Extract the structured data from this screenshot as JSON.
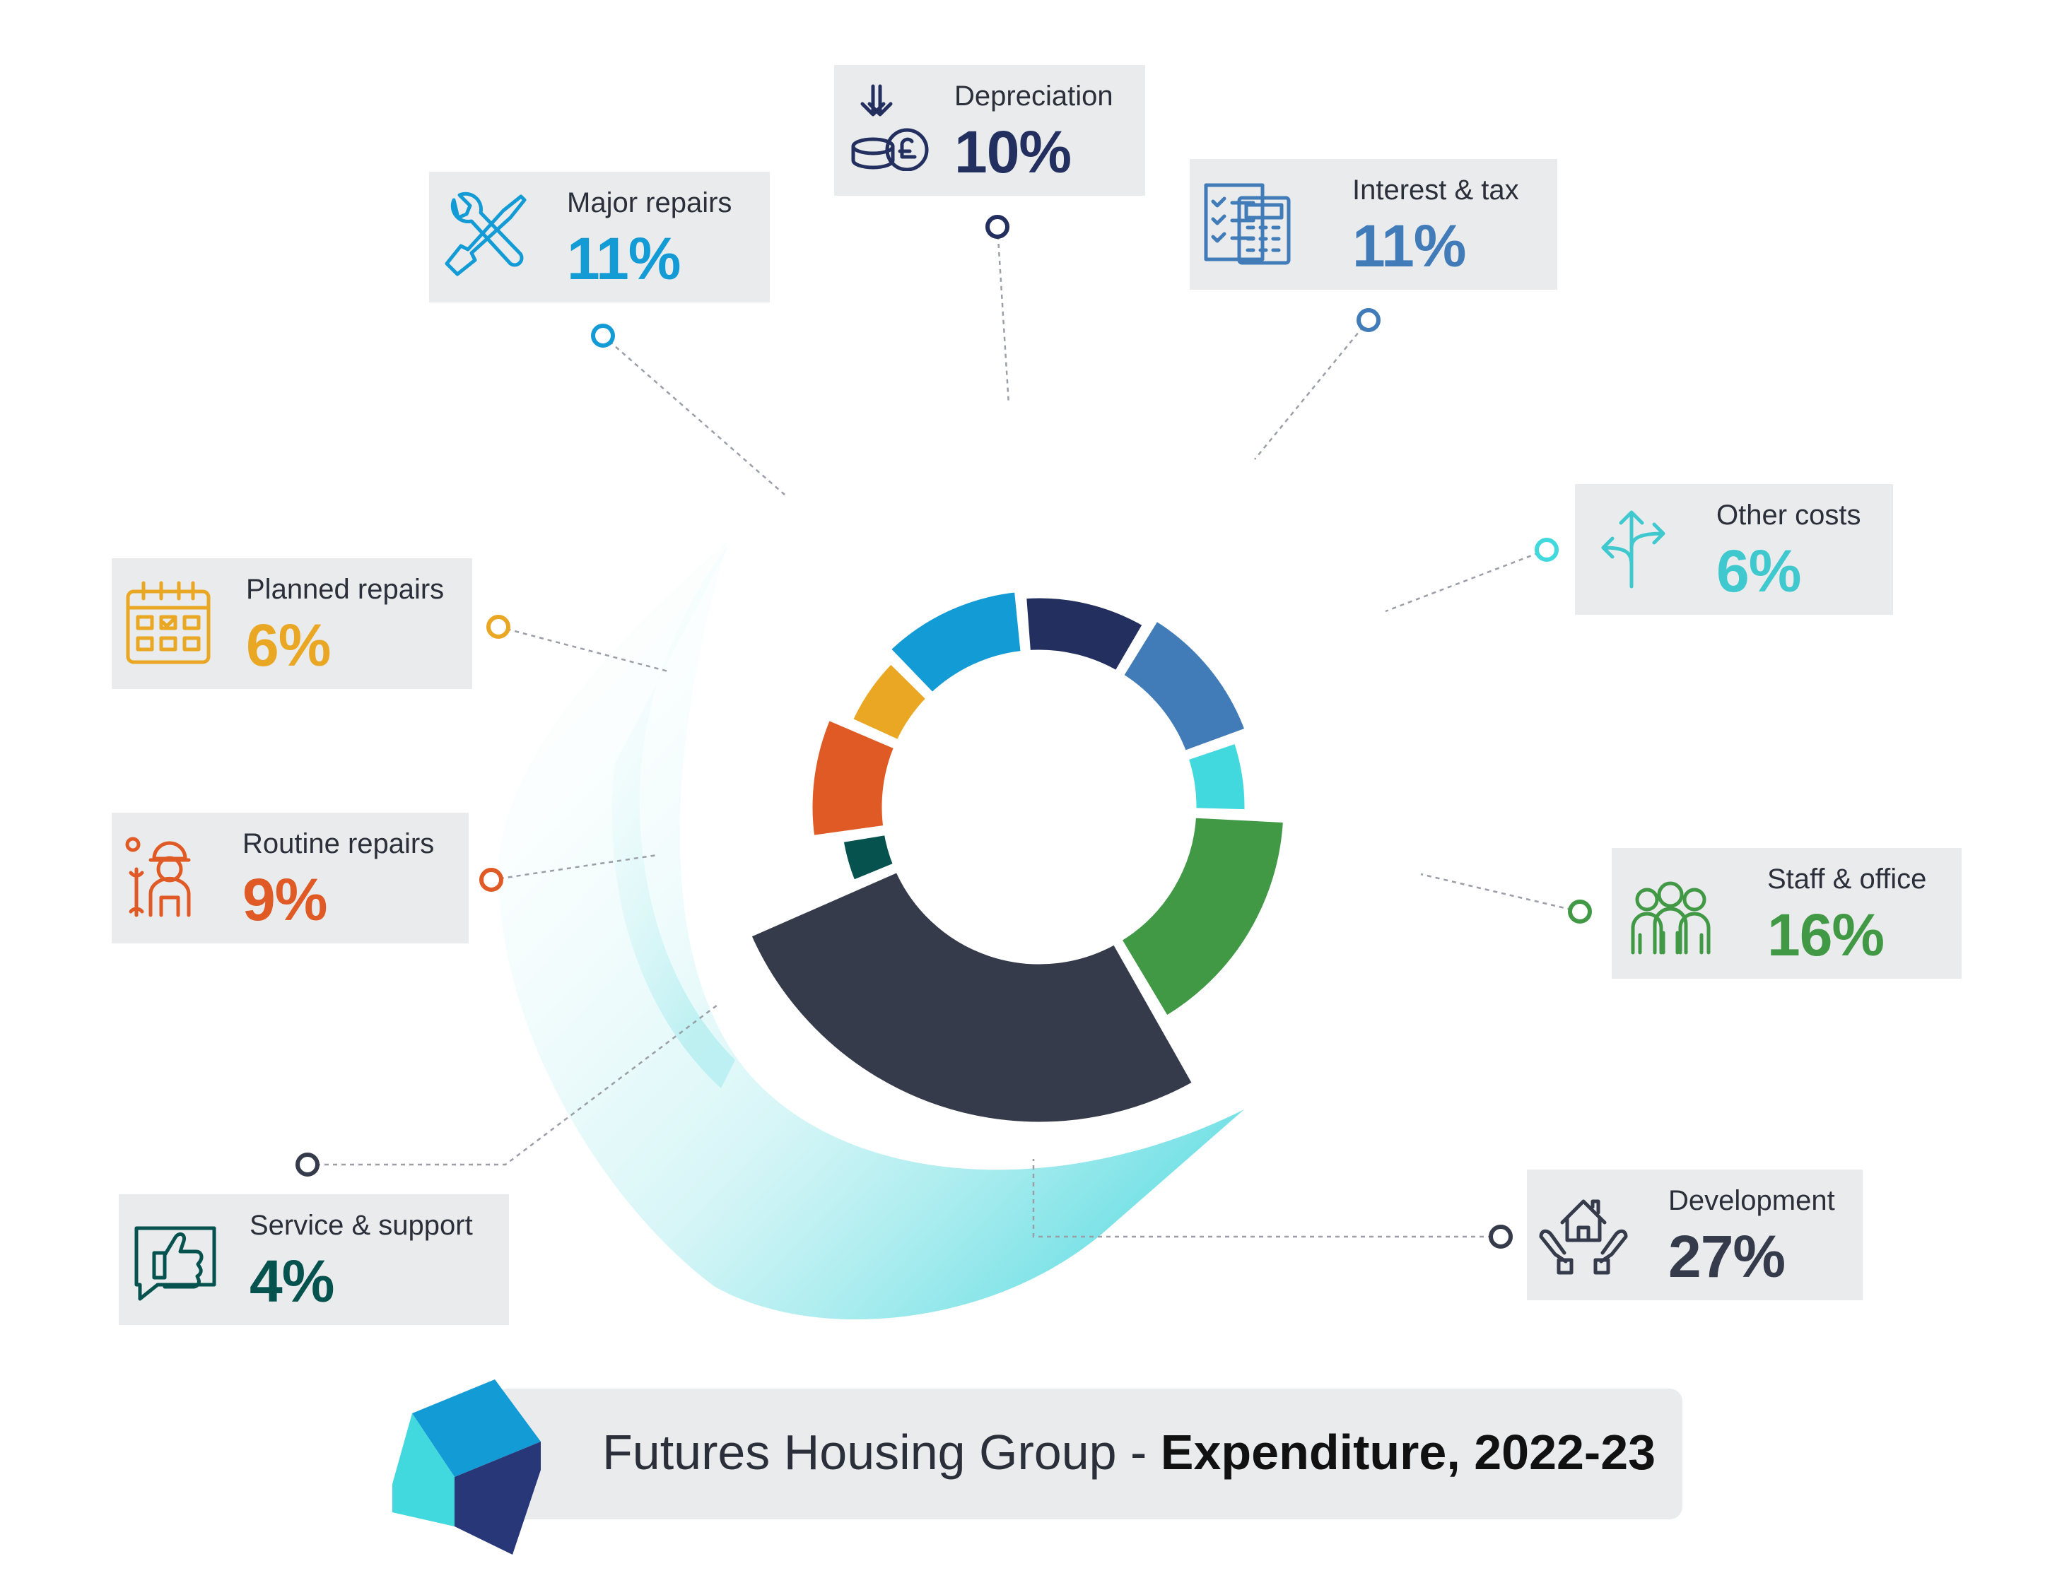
{
  "title": {
    "prefix": "Futures Housing Group - ",
    "bold": "Expenditure, 2022-23"
  },
  "chart_data": {
    "type": "pie",
    "title": "Futures Housing Group - Expenditure, 2022-23",
    "unit": "%",
    "categories": [
      "Depreciation",
      "Interest & tax",
      "Other costs",
      "Staff & office",
      "Development",
      "Service & support",
      "Routine repairs",
      "Planned repairs",
      "Major repairs"
    ],
    "values": [
      10,
      11,
      6,
      16,
      27,
      4,
      9,
      6,
      11
    ],
    "labels": [
      "10%",
      "11%",
      "6%",
      "16%",
      "27%",
      "4%",
      "9%",
      "6%",
      "11%"
    ],
    "colors": [
      "#222f5f",
      "#417cb9",
      "#42d9de",
      "#419945",
      "#363b4b",
      "#05524f",
      "#e05a25",
      "#e9a723",
      "#139bd6"
    ],
    "icons": [
      "coins-pound-icon",
      "calculator-checklist-icon",
      "direction-arrows-icon",
      "staff-group-icon",
      "house-hands-icon",
      "thumbs-up-icon",
      "worker-icon",
      "calendar-icon",
      "wrench-screwdriver-icon"
    ]
  }
}
